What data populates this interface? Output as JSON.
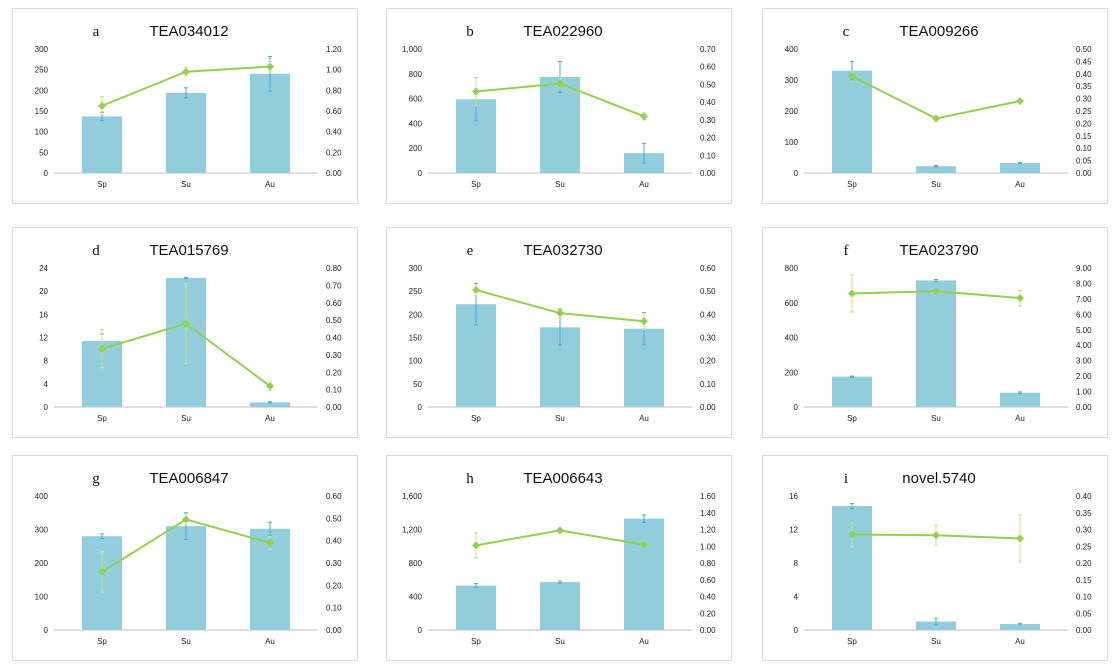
{
  "colors": {
    "bar": "#92cddc",
    "bar_error": "#3fb0d8",
    "line": "#92d050",
    "line_error": "#c9e07f"
  },
  "chart_data": [
    {
      "type": "bar+line",
      "panel_letter": "a",
      "title": "TEA034012",
      "categories": [
        "Sp",
        "Su",
        "Au"
      ],
      "left_axis": {
        "ylim": [
          0,
          300
        ],
        "ticks": [
          "0",
          "50",
          "100",
          "150",
          "200",
          "250",
          "300"
        ]
      },
      "right_axis": {
        "ylim": [
          0,
          1.2
        ],
        "ticks": [
          "0.00",
          "0.20",
          "0.40",
          "0.60",
          "0.80",
          "1.00",
          "1.20"
        ]
      },
      "bars": [
        {
          "value": 137,
          "error": 10
        },
        {
          "value": 194,
          "error": 12
        },
        {
          "value": 240,
          "error": 42
        }
      ],
      "line": [
        {
          "value": 0.65,
          "error": 0.09
        },
        {
          "value": 0.98,
          "error": 0.04
        },
        {
          "value": 1.03,
          "error": 0.05
        }
      ]
    },
    {
      "type": "bar+line",
      "panel_letter": "b",
      "title": "TEA022960",
      "categories": [
        "Sp",
        "Su",
        "Au"
      ],
      "left_axis": {
        "ylim": [
          0,
          1000
        ],
        "ticks": [
          "0",
          "200",
          "400",
          "600",
          "800",
          "1,000"
        ]
      },
      "right_axis": {
        "ylim": [
          0,
          0.7
        ],
        "ticks": [
          "0.00",
          "0.10",
          "0.20",
          "0.30",
          "0.40",
          "0.50",
          "0.60",
          "0.70"
        ]
      },
      "bars": [
        {
          "value": 595,
          "error": 175
        },
        {
          "value": 775,
          "error": 125
        },
        {
          "value": 160,
          "error": 80
        }
      ],
      "line": [
        {
          "value": 0.46,
          "error": 0.08
        },
        {
          "value": 0.505,
          "error": 0.03
        },
        {
          "value": 0.32,
          "error": 0.02
        }
      ]
    },
    {
      "type": "bar+line",
      "panel_letter": "c",
      "title": "TEA009266",
      "categories": [
        "Sp",
        "Su",
        "Au"
      ],
      "left_axis": {
        "ylim": [
          0,
          400
        ],
        "ticks": [
          "0",
          "100",
          "200",
          "300",
          "400"
        ]
      },
      "right_axis": {
        "ylim": [
          0,
          0.5
        ],
        "ticks": [
          "0.00",
          "0.05",
          "0.10",
          "0.15",
          "0.20",
          "0.25",
          "0.30",
          "0.35",
          "0.40",
          "0.45",
          "0.50"
        ]
      },
      "bars": [
        {
          "value": 330,
          "error": 30
        },
        {
          "value": 22,
          "error": 2
        },
        {
          "value": 32,
          "error": 2
        }
      ],
      "line": [
        {
          "value": 0.39,
          "error": 0.02
        },
        {
          "value": 0.22,
          "error": 0.005
        },
        {
          "value": 0.29,
          "error": 0.005
        }
      ]
    },
    {
      "type": "bar+line",
      "panel_letter": "d",
      "title": "TEA015769",
      "categories": [
        "Sp",
        "Su",
        "Au"
      ],
      "left_axis": {
        "ylim": [
          0,
          24
        ],
        "ticks": [
          "0",
          "4",
          "8",
          "12",
          "16",
          "20",
          "24"
        ]
      },
      "right_axis": {
        "ylim": [
          0,
          0.8
        ],
        "ticks": [
          "0.00",
          "0.10",
          "0.20",
          "0.30",
          "0.40",
          "0.50",
          "0.60",
          "0.70",
          "0.80"
        ]
      },
      "bars": [
        {
          "value": 11.4,
          "error": 1.2
        },
        {
          "value": 22.3,
          "error": 0.1
        },
        {
          "value": 0.8,
          "error": 0.1
        }
      ],
      "line": [
        {
          "value": 0.335,
          "error": 0.11
        },
        {
          "value": 0.48,
          "error": 0.23
        },
        {
          "value": 0.12,
          "error": 0.025
        }
      ]
    },
    {
      "type": "bar+line",
      "panel_letter": "e",
      "title": "TEA032730",
      "categories": [
        "Sp",
        "Su",
        "Au"
      ],
      "left_axis": {
        "ylim": [
          0,
          300
        ],
        "ticks": [
          "0",
          "50",
          "100",
          "150",
          "200",
          "250",
          "300"
        ]
      },
      "right_axis": {
        "ylim": [
          0,
          0.6
        ],
        "ticks": [
          "0.00",
          "0.10",
          "0.20",
          "0.30",
          "0.40",
          "0.50",
          "0.60"
        ]
      },
      "bars": [
        {
          "value": 222,
          "error": 45
        },
        {
          "value": 172,
          "error": 38
        },
        {
          "value": 169,
          "error": 35
        }
      ],
      "line": [
        {
          "value": 0.505,
          "error": 0.025
        },
        {
          "value": 0.405,
          "error": 0.02
        },
        {
          "value": 0.37,
          "error": 0.035
        }
      ]
    },
    {
      "type": "bar+line",
      "panel_letter": "f",
      "title": "TEA023790",
      "categories": [
        "Sp",
        "Su",
        "Au"
      ],
      "left_axis": {
        "ylim": [
          0,
          800
        ],
        "ticks": [
          "0",
          "200",
          "400",
          "600",
          "800"
        ]
      },
      "right_axis": {
        "ylim": [
          0,
          9
        ],
        "ticks": [
          "0.00",
          "1.00",
          "2.00",
          "3.00",
          "4.00",
          "5.00",
          "6.00",
          "7.00",
          "8.00",
          "9.00"
        ]
      },
      "bars": [
        {
          "value": 175,
          "error": 3
        },
        {
          "value": 728,
          "error": 6
        },
        {
          "value": 82,
          "error": 5
        }
      ],
      "line": [
        {
          "value": 7.35,
          "error": 1.2
        },
        {
          "value": 7.5,
          "error": 0.1
        },
        {
          "value": 7.05,
          "error": 0.5
        }
      ]
    },
    {
      "type": "bar+line",
      "panel_letter": "g",
      "title": "TEA006847",
      "categories": [
        "Sp",
        "Su",
        "Au"
      ],
      "left_axis": {
        "ylim": [
          0,
          400
        ],
        "ticks": [
          "0",
          "100",
          "200",
          "300",
          "400"
        ]
      },
      "right_axis": {
        "ylim": [
          0,
          0.6
        ],
        "ticks": [
          "0.00",
          "0.10",
          "0.20",
          "0.30",
          "0.40",
          "0.50",
          "0.60"
        ]
      },
      "bars": [
        {
          "value": 280,
          "error": 7
        },
        {
          "value": 310,
          "error": 40
        },
        {
          "value": 302,
          "error": 20
        }
      ],
      "line": [
        {
          "value": 0.26,
          "error": 0.09
        },
        {
          "value": 0.495,
          "error": 0.025
        },
        {
          "value": 0.39,
          "error": 0.03
        }
      ]
    },
    {
      "type": "bar+line",
      "panel_letter": "h",
      "title": "TEA006643",
      "categories": [
        "Sp",
        "Su",
        "Au"
      ],
      "left_axis": {
        "ylim": [
          0,
          1600
        ],
        "ticks": [
          "0",
          "400",
          "800",
          "1,200",
          "1,600"
        ]
      },
      "right_axis": {
        "ylim": [
          0,
          1.6
        ],
        "ticks": [
          "0.00",
          "0.20",
          "0.40",
          "0.60",
          "0.80",
          "1.00",
          "1.20",
          "1.40",
          "1.60"
        ]
      },
      "bars": [
        {
          "value": 530,
          "error": 25
        },
        {
          "value": 572,
          "error": 12
        },
        {
          "value": 1330,
          "error": 45
        }
      ],
      "line": [
        {
          "value": 1.01,
          "error": 0.15
        },
        {
          "value": 1.19,
          "error": 0.01
        },
        {
          "value": 1.02,
          "error": 0.01
        }
      ]
    },
    {
      "type": "bar+line",
      "panel_letter": "i",
      "title": "novel.5740",
      "categories": [
        "Sp",
        "Su",
        "Au"
      ],
      "left_axis": {
        "ylim": [
          0,
          16
        ],
        "ticks": [
          "0",
          "4",
          "8",
          "12",
          "16"
        ]
      },
      "right_axis": {
        "ylim": [
          0,
          0.4
        ],
        "ticks": [
          "0.00",
          "0.05",
          "0.10",
          "0.15",
          "0.20",
          "0.25",
          "0.30",
          "0.35",
          "0.40"
        ]
      },
      "bars": [
        {
          "value": 14.8,
          "error": 0.3
        },
        {
          "value": 1.0,
          "error": 0.4
        },
        {
          "value": 0.7,
          "error": 0.1
        }
      ],
      "line": [
        {
          "value": 0.285,
          "error": 0.035
        },
        {
          "value": 0.283,
          "error": 0.03
        },
        {
          "value": 0.273,
          "error": 0.07
        }
      ]
    }
  ]
}
